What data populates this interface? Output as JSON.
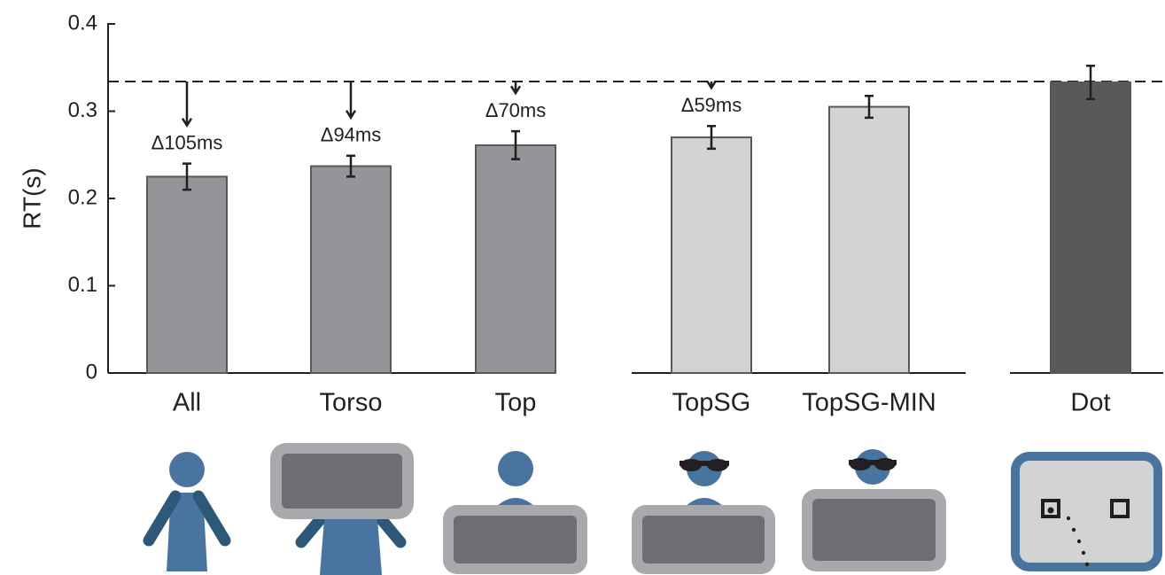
{
  "chart_data": {
    "type": "bar",
    "ylabel": "RT(s)",
    "categories": [
      "All",
      "Torso",
      "Top",
      "TopSG",
      "TopSG-MIN",
      "Dot"
    ],
    "values": [
      0.225,
      0.237,
      0.261,
      0.27,
      0.305,
      0.333
    ],
    "errors": [
      0.015,
      0.012,
      0.016,
      0.013,
      0.0125,
      0.019
    ],
    "colors": [
      "#939598",
      "#939598",
      "#939598",
      "#d1d3d4",
      "#d1d3d4",
      "#58595b"
    ],
    "reference": 0.334,
    "annotations": [
      "Δ105ms",
      "Δ94ms",
      "Δ70ms",
      "Δ59ms",
      null,
      null
    ],
    "ylim": [
      0,
      0.4
    ],
    "yticks": [
      0,
      0.1,
      0.2,
      0.3,
      0.4
    ]
  }
}
